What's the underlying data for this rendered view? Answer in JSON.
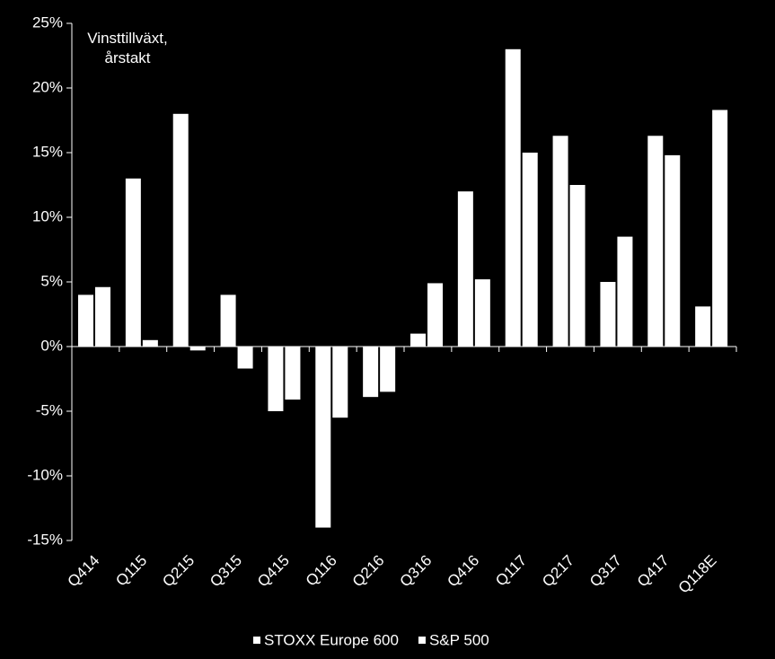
{
  "chart_data": {
    "type": "bar",
    "annotation": "Vinsttillväxt, årstakt",
    "categories": [
      "Q414",
      "Q115",
      "Q215",
      "Q315",
      "Q415",
      "Q116",
      "Q216",
      "Q316",
      "Q416",
      "Q117",
      "Q217",
      "Q317",
      "Q417",
      "Q118E"
    ],
    "series": [
      {
        "name": "STOXX Europe 600",
        "color": "#ffffff",
        "values": [
          4,
          13,
          18,
          4,
          -5,
          -14,
          -3.9,
          1,
          12,
          23,
          16.3,
          5,
          16.3,
          3.1
        ]
      },
      {
        "name": "S&P 500",
        "color": "#ffffff",
        "values": [
          4.6,
          0.5,
          -0.3,
          -1.7,
          -4.1,
          -5.5,
          -3.5,
          4.9,
          5.2,
          15,
          12.5,
          8.5,
          14.8,
          18.3
        ]
      }
    ],
    "ylim": [
      -15,
      25
    ],
    "yticks": [
      {
        "value": -15,
        "label": "-15%"
      },
      {
        "value": -10,
        "label": "-10%"
      },
      {
        "value": -5,
        "label": "-5%"
      },
      {
        "value": 0,
        "label": "0%"
      },
      {
        "value": 5,
        "label": "5%"
      },
      {
        "value": 10,
        "label": "10%"
      },
      {
        "value": 15,
        "label": "15%"
      },
      {
        "value": 20,
        "label": "20%"
      },
      {
        "value": 25,
        "label": "25%"
      }
    ],
    "grid": false,
    "legend": "bottom"
  }
}
